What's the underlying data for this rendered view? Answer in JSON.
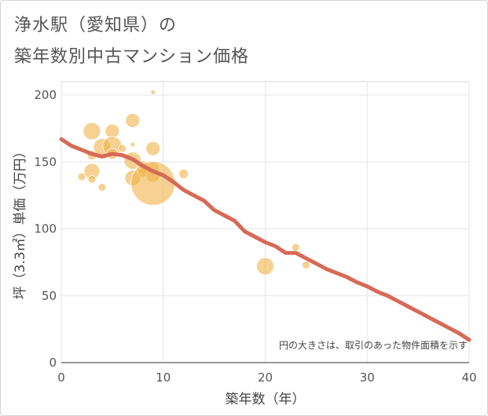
{
  "title_line1": "浄水駅（愛知県）の",
  "title_line2": "築年数別中古マンション価格",
  "chart_data": {
    "type": "scatter",
    "xlabel": "築年数（年）",
    "ylabel": "坪（3.3㎡）単価（万円）",
    "xlim": [
      0,
      40
    ],
    "ylim": [
      0,
      210
    ],
    "xticks": [
      0,
      10,
      20,
      30,
      40
    ],
    "yticks": [
      0,
      50,
      100,
      150,
      200
    ],
    "grid": true,
    "note": "円の大きさは、取引のあった物件面積を示す",
    "bubble_color": "#f0b24a",
    "line_color": "#d76a56",
    "scatter": [
      {
        "x": 2,
        "y": 139,
        "size": 5
      },
      {
        "x": 3,
        "y": 173,
        "size": 11
      },
      {
        "x": 3,
        "y": 155,
        "size": 6
      },
      {
        "x": 3,
        "y": 143,
        "size": 10
      },
      {
        "x": 3,
        "y": 137,
        "size": 5
      },
      {
        "x": 4,
        "y": 161,
        "size": 11
      },
      {
        "x": 4,
        "y": 131,
        "size": 5
      },
      {
        "x": 5,
        "y": 173,
        "size": 9
      },
      {
        "x": 5,
        "y": 162,
        "size": 12
      },
      {
        "x": 5,
        "y": 156,
        "size": 7
      },
      {
        "x": 6,
        "y": 160,
        "size": 5
      },
      {
        "x": 7,
        "y": 181,
        "size": 9
      },
      {
        "x": 7,
        "y": 163,
        "size": 3
      },
      {
        "x": 7,
        "y": 151,
        "size": 11
      },
      {
        "x": 7,
        "y": 138,
        "size": 10
      },
      {
        "x": 8,
        "y": 146,
        "size": 8
      },
      {
        "x": 8,
        "y": 142,
        "size": 6
      },
      {
        "x": 9,
        "y": 202,
        "size": 3
      },
      {
        "x": 9,
        "y": 160,
        "size": 9
      },
      {
        "x": 9,
        "y": 145,
        "size": 8
      },
      {
        "x": 9,
        "y": 140,
        "size": 9
      },
      {
        "x": 9,
        "y": 134,
        "size": 28
      },
      {
        "x": 12,
        "y": 141,
        "size": 6
      },
      {
        "x": 20,
        "y": 72,
        "size": 11
      },
      {
        "x": 23,
        "y": 86,
        "size": 5
      },
      {
        "x": 24,
        "y": 73,
        "size": 5
      }
    ],
    "trend": {
      "x": [
        0,
        1,
        2,
        3,
        4,
        5,
        6,
        7,
        8,
        9,
        10,
        11,
        12,
        13,
        14,
        15,
        16,
        17,
        18,
        19,
        20,
        21,
        22,
        23,
        24,
        25,
        26,
        27,
        28,
        29,
        30,
        31,
        32,
        33,
        34,
        35,
        36,
        37,
        38,
        39,
        40
      ],
      "y": [
        167,
        162,
        159,
        156,
        154,
        156,
        155,
        152,
        147,
        143,
        140,
        135,
        129,
        125,
        121,
        114,
        110,
        106,
        98,
        94,
        90,
        87,
        82,
        82,
        78,
        74,
        70,
        67,
        64,
        60,
        57,
        53,
        50,
        46,
        42,
        38,
        34,
        30,
        26,
        22,
        17
      ]
    }
  }
}
